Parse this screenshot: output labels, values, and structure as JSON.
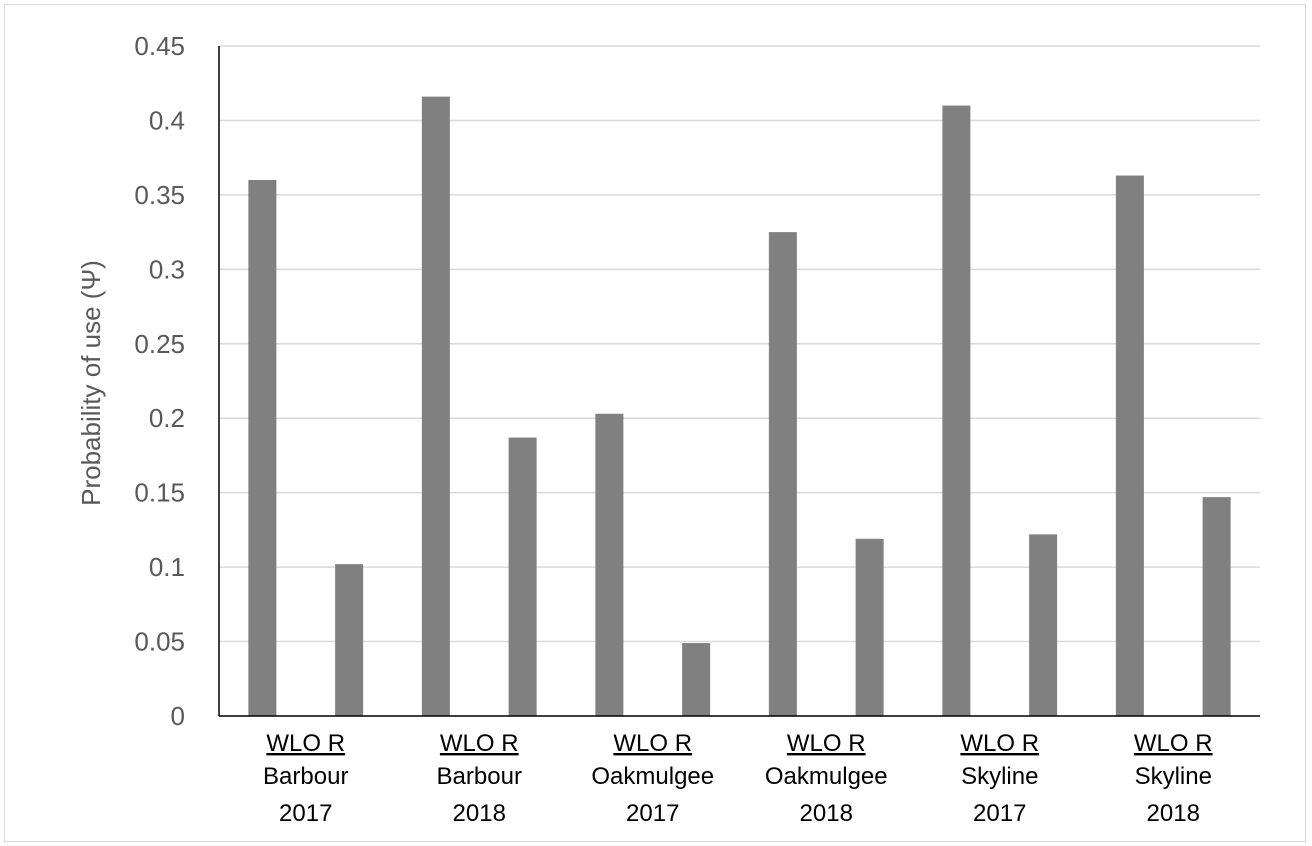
{
  "chart_data": {
    "type": "bar",
    "ylabel": "Probability of use (Ψ)",
    "ylim": [
      0,
      0.45
    ],
    "ytick_labels": [
      "0",
      "0.05",
      "0.1",
      "0.15",
      "0.2",
      "0.25",
      "0.3",
      "0.35",
      "0.4",
      "0.45"
    ],
    "grid": true,
    "bar_color": "#808080",
    "groups": [
      {
        "top": "WLO      R",
        "site": "Barbour",
        "year": "2017",
        "values": [
          0.36,
          0.102
        ]
      },
      {
        "top": "WLO      R",
        "site": "Barbour",
        "year": "2018",
        "values": [
          0.416,
          0.187
        ]
      },
      {
        "top": "WLO      R",
        "site": "Oakmulgee",
        "year": "2017",
        "values": [
          0.203,
          0.049
        ]
      },
      {
        "top": "WLO      R",
        "site": "Oakmulgee",
        "year": "2018",
        "values": [
          0.325,
          0.119
        ]
      },
      {
        "top": "WLO      R",
        "site": "Skyline",
        "year": "2017",
        "values": [
          0.41,
          0.122
        ]
      },
      {
        "top": "WLO      R",
        "site": "Skyline",
        "year": "2018",
        "values": [
          0.363,
          0.147
        ]
      }
    ]
  }
}
